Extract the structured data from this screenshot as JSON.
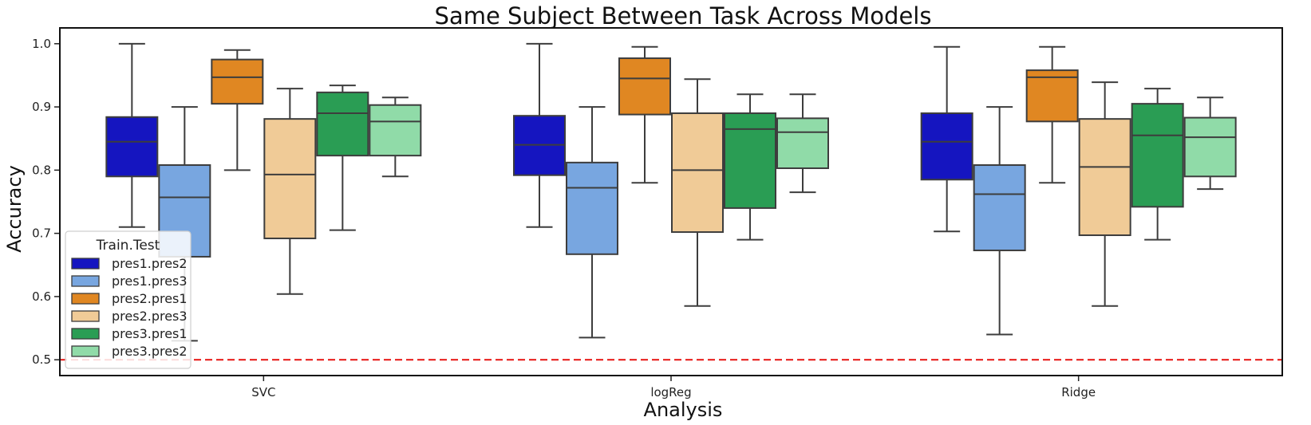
{
  "chart_data": {
    "type": "box",
    "title": "Same Subject Between Task Across Models",
    "xlabel": "Analysis",
    "ylabel": "Accuracy",
    "ylim": [
      0.475,
      1.025
    ],
    "yticks": [
      "0.5",
      "0.6",
      "0.7",
      "0.8",
      "0.9",
      "1.0"
    ],
    "reference_line": {
      "y": 0.5,
      "color": "#e8201e",
      "style": "dashed"
    },
    "legend": {
      "title": "Train.Test",
      "placement": "lower-left"
    },
    "categories": [
      "SVC",
      "logReg",
      "Ridge"
    ],
    "series": [
      {
        "name": "pres1.pres2",
        "color": "#1515c0",
        "boxes": [
          {
            "whislo": 0.71,
            "q1": 0.79,
            "med": 0.845,
            "q3": 0.884,
            "whishi": 1.0
          },
          {
            "whislo": 0.71,
            "q1": 0.792,
            "med": 0.84,
            "q3": 0.886,
            "whishi": 1.0
          },
          {
            "whislo": 0.703,
            "q1": 0.785,
            "med": 0.845,
            "q3": 0.89,
            "whishi": 0.995
          }
        ]
      },
      {
        "name": "pres1.pres3",
        "color": "#78a6e0",
        "boxes": [
          {
            "whislo": 0.53,
            "q1": 0.663,
            "med": 0.757,
            "q3": 0.808,
            "whishi": 0.9
          },
          {
            "whislo": 0.535,
            "q1": 0.667,
            "med": 0.772,
            "q3": 0.812,
            "whishi": 0.9
          },
          {
            "whislo": 0.54,
            "q1": 0.673,
            "med": 0.762,
            "q3": 0.808,
            "whishi": 0.9
          }
        ]
      },
      {
        "name": "pres2.pres1",
        "color": "#e08722",
        "boxes": [
          {
            "whislo": 0.8,
            "q1": 0.905,
            "med": 0.947,
            "q3": 0.975,
            "whishi": 0.99
          },
          {
            "whislo": 0.78,
            "q1": 0.888,
            "med": 0.945,
            "q3": 0.977,
            "whishi": 0.995
          },
          {
            "whislo": 0.78,
            "q1": 0.877,
            "med": 0.947,
            "q3": 0.958,
            "whishi": 0.995
          }
        ]
      },
      {
        "name": "pres2.pres3",
        "color": "#f0cb97",
        "boxes": [
          {
            "whislo": 0.604,
            "q1": 0.692,
            "med": 0.793,
            "q3": 0.881,
            "whishi": 0.929
          },
          {
            "whislo": 0.585,
            "q1": 0.702,
            "med": 0.8,
            "q3": 0.89,
            "whishi": 0.944
          },
          {
            "whislo": 0.585,
            "q1": 0.697,
            "med": 0.805,
            "q3": 0.881,
            "whishi": 0.939
          }
        ]
      },
      {
        "name": "pres3.pres1",
        "color": "#2a9d54",
        "boxes": [
          {
            "whislo": 0.705,
            "q1": 0.823,
            "med": 0.89,
            "q3": 0.923,
            "whishi": 0.934
          },
          {
            "whislo": 0.69,
            "q1": 0.74,
            "med": 0.865,
            "q3": 0.89,
            "whishi": 0.92
          },
          {
            "whislo": 0.69,
            "q1": 0.742,
            "med": 0.855,
            "q3": 0.905,
            "whishi": 0.929
          }
        ]
      },
      {
        "name": "pres3.pres2",
        "color": "#90dba8",
        "boxes": [
          {
            "whislo": 0.79,
            "q1": 0.823,
            "med": 0.877,
            "q3": 0.903,
            "whishi": 0.915
          },
          {
            "whislo": 0.765,
            "q1": 0.803,
            "med": 0.86,
            "q3": 0.882,
            "whishi": 0.92
          },
          {
            "whislo": 0.77,
            "q1": 0.79,
            "med": 0.852,
            "q3": 0.883,
            "whishi": 0.915
          }
        ]
      }
    ]
  }
}
